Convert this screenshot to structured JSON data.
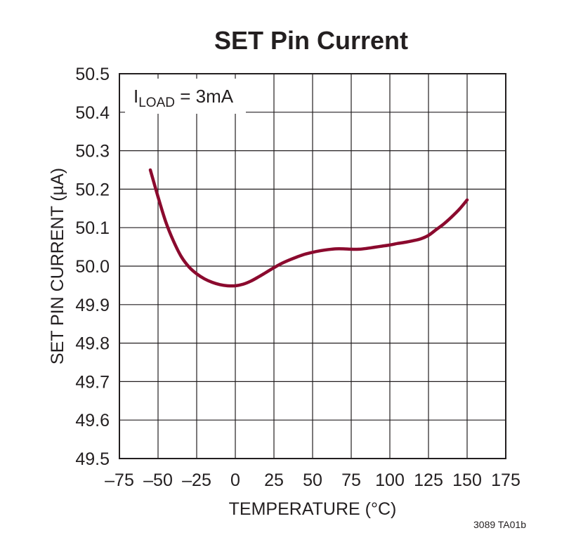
{
  "chart_data": {
    "type": "line",
    "title": "SET Pin Current",
    "xlabel": "TEMPERATURE (°C)",
    "ylabel": "SET PIN CURRENT (µA)",
    "xlim": [
      -75,
      175
    ],
    "ylim": [
      49.5,
      50.5
    ],
    "x_ticks": [
      -75,
      -50,
      -25,
      0,
      25,
      50,
      75,
      100,
      125,
      150,
      175
    ],
    "x_tick_labels": [
      "–75",
      "–50",
      "–25",
      "0",
      "25",
      "50",
      "75",
      "100",
      "125",
      "150",
      "175"
    ],
    "y_ticks": [
      49.5,
      49.6,
      49.7,
      49.8,
      49.9,
      50.0,
      50.1,
      50.2,
      50.3,
      50.4,
      50.5
    ],
    "y_tick_labels": [
      "49.5",
      "49.6",
      "49.7",
      "49.8",
      "49.9",
      "50.0",
      "50.1",
      "50.2",
      "50.3",
      "50.4",
      "50.5"
    ],
    "grid": true,
    "annotation": {
      "main": "I",
      "sub": "LOAD",
      "rest": " = 3mA"
    },
    "figure_id": "3089 TA01b",
    "line_color": "#8b0a2e",
    "series": [
      {
        "x": [
          -55,
          -50,
          -45,
          -40,
          -35,
          -30,
          -25,
          -20,
          -15,
          -10,
          -5,
          0,
          5,
          10,
          15,
          20,
          25,
          30,
          35,
          40,
          45,
          50,
          55,
          60,
          65,
          70,
          75,
          80,
          85,
          90,
          95,
          100,
          105,
          110,
          115,
          120,
          125,
          130,
          135,
          140,
          145,
          150
        ],
        "y": [
          50.25,
          50.18,
          50.115,
          50.065,
          50.025,
          49.998,
          49.98,
          49.967,
          49.958,
          49.952,
          49.949,
          49.949,
          49.953,
          49.961,
          49.972,
          49.984,
          49.996,
          50.007,
          50.016,
          50.024,
          50.031,
          50.036,
          50.04,
          50.043,
          50.045,
          50.045,
          50.044,
          50.044,
          50.046,
          50.049,
          50.052,
          50.055,
          50.059,
          50.062,
          50.066,
          50.071,
          50.08,
          50.095,
          50.11,
          50.128,
          50.148,
          50.172
        ]
      }
    ]
  }
}
